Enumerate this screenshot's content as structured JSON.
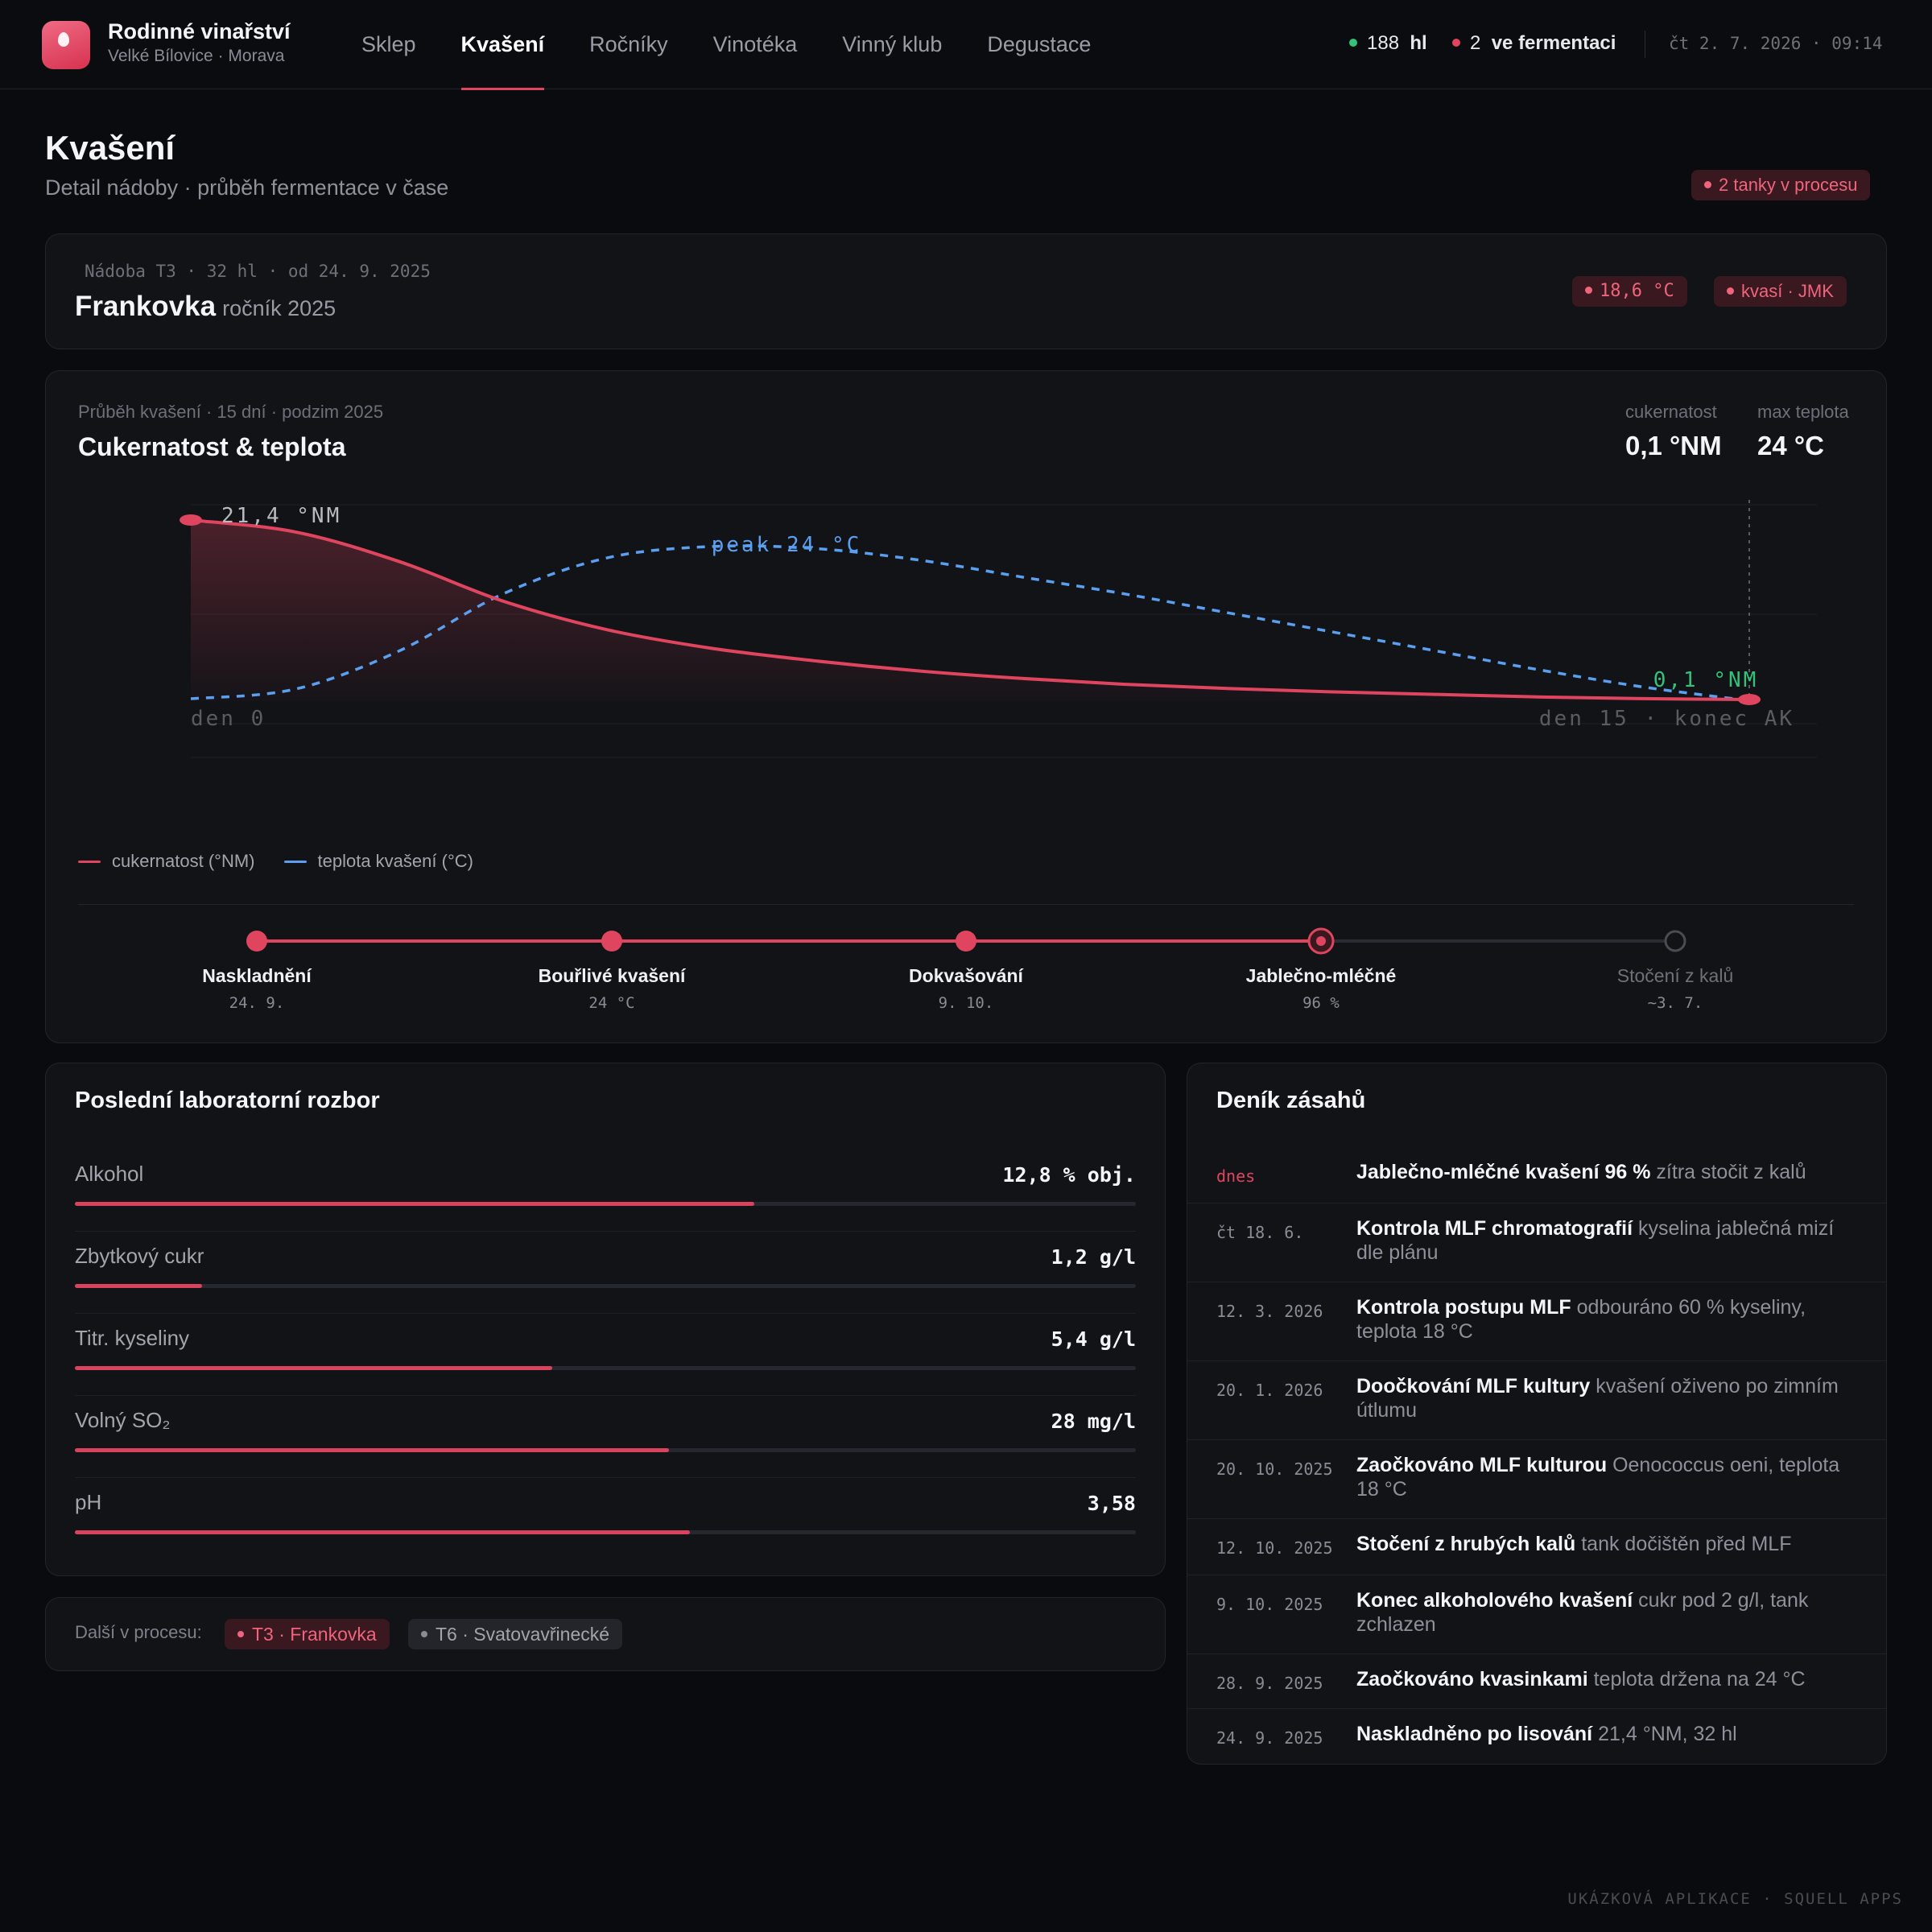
{
  "brand": {
    "title": "Rodinné vinařství",
    "subtitle": "Velké Bílovice · Morava"
  },
  "nav": [
    "Sklep",
    "Kvašení",
    "Ročníky",
    "Vinotéka",
    "Vinný klub",
    "Degustace"
  ],
  "nav_active": "Kvašení",
  "status": {
    "volume_value": "188",
    "volume_unit": "hl",
    "ferment_value": "2",
    "ferment_label": "ve fermentaci",
    "datetime": "čt 2. 7. 2026 · 09:14"
  },
  "page": {
    "title": "Kvašení",
    "subtitle": "Detail nádoby · průběh fermentace v čase",
    "badge": "2 tanky v procesu"
  },
  "vessel": {
    "meta": "Nádoba T3 · 32 hl · od 24. 9. 2025",
    "name": "Frankovka",
    "year": "ročník 2025",
    "temp_badge": "18,6 °C",
    "status_badge": "kvasí · JMK"
  },
  "chart_card": {
    "meta": "Průběh kvašení · 15 dní · podzim 2025",
    "title": "Cukernatost & teplota",
    "kpi_sugar_label": "cukernatost",
    "kpi_sugar_value": "0,1 °NM",
    "kpi_temp_label": "max teplota",
    "kpi_temp_value": "24 °C",
    "legend_sugar": "cukernatost (°NM)",
    "legend_temp": "teplota kvašení (°C)"
  },
  "chart_data": {
    "type": "line",
    "x_start_label": "den 0",
    "x_end_label": "den 15 · konec AK",
    "series": [
      {
        "name": "cukernatost (°NM)",
        "color": "#e0455f",
        "x": [
          0,
          1,
          2,
          3,
          4,
          5,
          6,
          7,
          8,
          9,
          10,
          11,
          12,
          13,
          14,
          15
        ],
        "values": [
          21.4,
          20.0,
          16.5,
          11.8,
          8.4,
          6.2,
          4.7,
          3.5,
          2.6,
          1.9,
          1.4,
          1.0,
          0.7,
          0.4,
          0.2,
          0.1
        ]
      },
      {
        "name": "teplota kvašení (°C)",
        "color": "#5b9ff0",
        "x": [
          0,
          1,
          2,
          3,
          4,
          5,
          6,
          7,
          8,
          9,
          10,
          11,
          12,
          13,
          14,
          15
        ],
        "values": [
          16.0,
          16.5,
          18.5,
          21.5,
          23.4,
          24.0,
          23.9,
          23.3,
          22.4,
          21.5,
          20.5,
          19.5,
          18.5,
          17.5,
          16.6,
          15.9
        ]
      }
    ],
    "annotations": {
      "start": "21,4 °NM",
      "peak": "peak 24 °C",
      "end": "0,1 °NM"
    }
  },
  "phases": [
    {
      "label": "Naskladnění",
      "sub": "24. 9.",
      "state": "done"
    },
    {
      "label": "Bouřlivé kvašení",
      "sub": "24 °C",
      "state": "done"
    },
    {
      "label": "Dokvašování",
      "sub": "9. 10.",
      "state": "done"
    },
    {
      "label": "Jablečno-mléčné",
      "sub": "96 %",
      "state": "current"
    },
    {
      "label": "Stočení z kalů",
      "sub": "~3. 7.",
      "state": "pending"
    }
  ],
  "lab": {
    "title": "Poslední laboratorní rozbor",
    "rows": [
      {
        "name": "Alkohol",
        "value": "12,8 % obj.",
        "level": 0.64
      },
      {
        "name": "Zbytkový cukr",
        "value": "1,2 g/l",
        "level": 0.12
      },
      {
        "name": "Titr. kyseliny",
        "value": "5,4 g/l",
        "level": 0.45
      },
      {
        "name": "Volný SO₂",
        "value": "28 mg/l",
        "level": 0.56
      },
      {
        "name": "pH",
        "value": "3,58",
        "level": 0.58
      }
    ]
  },
  "next": {
    "label": "Další v procesu:",
    "chips": [
      {
        "text": "T3 · Frankovka",
        "active": true
      },
      {
        "text": "T6 · Svatovavřinecké",
        "active": false
      }
    ]
  },
  "log": {
    "title": "Deník zásahů",
    "entries": [
      {
        "date": "dnes",
        "title": "Jablečno-mléčné kvašení 96 %",
        "note": "zítra stočit z kalů"
      },
      {
        "date": "čt 18. 6.",
        "title": "Kontrola MLF chromatografií",
        "note": "kyselina jablečná mizí dle plánu"
      },
      {
        "date": "12. 3. 2026",
        "title": "Kontrola postupu MLF",
        "note": "odbouráno 60 % kyseliny, teplota 18 °C"
      },
      {
        "date": "20. 1. 2026",
        "title": "Doočkování MLF kultury",
        "note": "kvašení oživeno po zimním útlumu"
      },
      {
        "date": "20. 10. 2025",
        "title": "Zaočkováno MLF kulturou",
        "note": "Oenococcus oeni, teplota 18 °C"
      },
      {
        "date": "12. 10. 2025",
        "title": "Stočení z hrubých kalů",
        "note": "tank dočištěn před MLF"
      },
      {
        "date": "9. 10. 2025",
        "title": "Konec alkoholového kvašení",
        "note": "cukr pod 2 g/l, tank zchlazen"
      },
      {
        "date": "28. 9. 2025",
        "title": "Zaočkováno kvasinkami",
        "note": "teplota držena na 24 °C"
      },
      {
        "date": "24. 9. 2025",
        "title": "Naskladněno po lisování",
        "note": "21,4 °NM, 32 hl"
      }
    ]
  },
  "footer": "UKÁZKOVÁ APLIKACE · SQUELL APPS"
}
